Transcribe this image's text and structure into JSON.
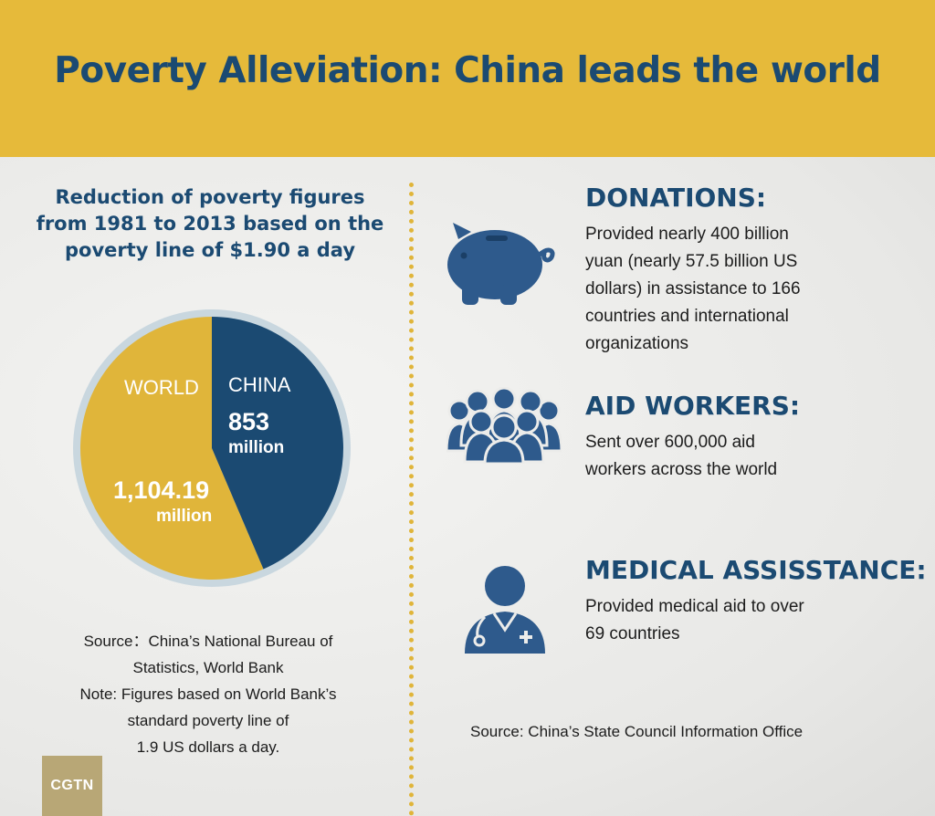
{
  "title": "Poverty Alleviation: China leads the world",
  "chart_data": {
    "type": "pie",
    "title": "Reduction of poverty figures from 1981 to 2013 based on the poverty line of $1.90 a day",
    "slices": [
      {
        "label": "CHINA",
        "value": 853,
        "value_text": "853",
        "unit": "million",
        "color": "#1b4a72"
      },
      {
        "label": "WORLD",
        "value": 1104.19,
        "value_text": "1,104.19",
        "unit": "million",
        "color": "#e0b53a"
      }
    ],
    "ring_color": "#c9d7df"
  },
  "left_notes": {
    "source_line1": "Source：China’s National Bureau of",
    "source_line2": "Statistics, World Bank",
    "note_line1": "Note: Figures based on World Bank’s",
    "note_line2": "standard poverty line of",
    "note_line3": "1.9 US dollars a day."
  },
  "logo": "CGTN",
  "sections": {
    "donations": {
      "heading": "DONATIONS:",
      "body": "Provided nearly 400 billion\nyuan (nearly 57.5 billion US\ndollars) in assistance to 166\ncountries and international\norganizations",
      "icon": "piggy-bank-icon"
    },
    "aid_workers": {
      "heading": "AID WORKERS:",
      "body": "Sent over 600,000 aid\nworkers across the world",
      "icon": "people-group-icon"
    },
    "medical": {
      "heading": "MEDICAL ASSISSTANCE:",
      "body": "Provided medical aid to over\n69 countries",
      "icon": "doctor-icon"
    }
  },
  "right_source": "Source: China’s State Council Information Office",
  "colors": {
    "navy": "#1b4a72",
    "gold": "#e0b53a",
    "banner": "#e6ba3a",
    "icon_blue": "#2e5a8c"
  }
}
